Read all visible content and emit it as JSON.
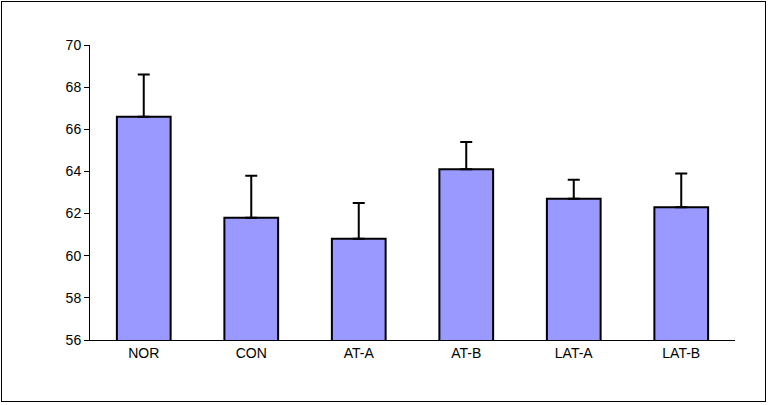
{
  "chart_data": {
    "type": "bar",
    "categories": [
      "NOR",
      "CON",
      "AT-A",
      "AT-B",
      "LAT-A",
      "LAT-B"
    ],
    "values": [
      66.6,
      61.8,
      60.8,
      64.1,
      62.7,
      62.3
    ],
    "errors": [
      2.0,
      2.0,
      1.7,
      1.3,
      0.9,
      1.6
    ],
    "color": "#9999ff",
    "ylim": [
      56,
      70
    ],
    "yticks": [
      56,
      58,
      60,
      62,
      64,
      66,
      68,
      70
    ],
    "grid": false
  }
}
